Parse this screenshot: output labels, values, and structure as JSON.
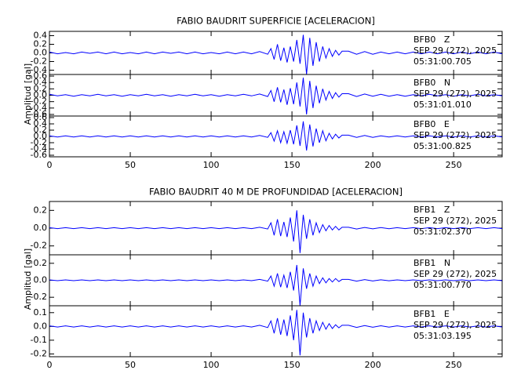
{
  "chart_data": [
    {
      "type": "line",
      "title": "FABIO BAUDRIT SUPERFICIE [ACELERACION]",
      "ylabel": "Amplitud [gal]",
      "xlim": [
        0,
        280
      ],
      "xticks": [
        0,
        50,
        100,
        150,
        200,
        250
      ],
      "x": [
        0,
        5,
        10,
        15,
        20,
        25,
        30,
        35,
        40,
        45,
        50,
        55,
        60,
        65,
        70,
        75,
        80,
        85,
        90,
        95,
        100,
        105,
        110,
        115,
        120,
        125,
        130,
        135,
        137,
        139,
        141,
        143,
        145,
        147,
        149,
        151,
        153,
        155,
        157,
        159,
        161,
        163,
        165,
        167,
        169,
        171,
        173,
        175,
        177,
        179,
        181,
        185,
        190,
        195,
        200,
        205,
        210,
        215,
        220,
        225,
        230,
        235,
        240,
        245,
        250,
        255,
        260,
        265,
        270,
        275,
        280
      ],
      "series": [
        {
          "name": "BFB0   Z",
          "date": "SEP 29 (272), 2025",
          "time": "05:31:00.705",
          "color": "#0000ff",
          "ylim": [
            -0.5,
            0.5
          ],
          "yticks": [
            -0.4,
            -0.2,
            {
              "value": 0,
              "label": "0.0"
            },
            0.2,
            0.4
          ],
          "values": [
            0.02,
            -0.02,
            0.01,
            -0.02,
            0.02,
            -0.01,
            0.02,
            -0.02,
            0.02,
            -0.02,
            0.01,
            -0.02,
            0.02,
            -0.02,
            0.02,
            -0.01,
            0.02,
            -0.02,
            0.02,
            -0.02,
            0.01,
            -0.02,
            0.02,
            -0.02,
            0.02,
            -0.02,
            0.03,
            -0.03,
            0.1,
            -0.15,
            0.2,
            -0.18,
            0.12,
            -0.22,
            0.15,
            -0.2,
            0.3,
            -0.25,
            0.42,
            -0.5,
            0.35,
            -0.3,
            0.25,
            -0.2,
            0.15,
            -0.12,
            0.1,
            -0.08,
            0.06,
            -0.05,
            0.04,
            0.04,
            -0.03,
            0.03,
            -0.03,
            0.02,
            -0.02,
            0.02,
            -0.02,
            0.02,
            -0.02,
            0.02,
            -0.02,
            0.02,
            -0.02,
            0.02,
            -0.02,
            0.02,
            -0.02,
            0.02,
            -0.02
          ]
        },
        {
          "name": "BFB0   N",
          "date": "SEP 29 (272), 2025",
          "time": "05:31:01.010",
          "color": "#0000ff",
          "ylim": [
            -0.65,
            0.65
          ],
          "yticks": [
            -0.6,
            -0.4,
            -0.2,
            {
              "value": 0,
              "label": "0.0"
            },
            0.2,
            0.4,
            0.6
          ],
          "values": [
            0.03,
            -0.02,
            0.02,
            -0.03,
            0.02,
            -0.02,
            0.03,
            -0.02,
            0.02,
            -0.03,
            0.02,
            -0.02,
            0.03,
            -0.02,
            0.02,
            -0.03,
            0.02,
            -0.02,
            0.03,
            -0.02,
            0.02,
            -0.03,
            0.02,
            -0.02,
            0.03,
            -0.02,
            0.04,
            -0.04,
            0.15,
            -0.2,
            0.25,
            -0.22,
            0.18,
            -0.3,
            0.22,
            -0.28,
            0.4,
            -0.35,
            0.55,
            -0.6,
            0.45,
            -0.4,
            0.3,
            -0.25,
            0.2,
            -0.15,
            0.12,
            -0.1,
            0.08,
            -0.06,
            0.05,
            0.05,
            -0.04,
            0.04,
            -0.03,
            0.03,
            -0.03,
            0.02,
            -0.03,
            0.02,
            -0.02,
            0.03,
            -0.02,
            0.02,
            -0.03,
            0.02,
            -0.02,
            0.03,
            -0.02,
            0.02,
            -0.02
          ]
        },
        {
          "name": "BFB0   E",
          "date": "SEP 29 (272), 2025",
          "time": "05:31:00.825",
          "color": "#0000ff",
          "ylim": [
            -0.65,
            0.65
          ],
          "yticks": [
            -0.6,
            -0.4,
            -0.2,
            {
              "value": 0,
              "label": "0.0"
            },
            0.2,
            0.4,
            0.6
          ],
          "values": [
            0.02,
            -0.02,
            0.02,
            -0.02,
            0.02,
            -0.02,
            0.02,
            -0.02,
            0.02,
            -0.02,
            0.02,
            -0.02,
            0.02,
            -0.02,
            0.02,
            -0.02,
            0.02,
            -0.02,
            0.02,
            -0.02,
            0.02,
            -0.02,
            0.02,
            -0.02,
            0.02,
            -0.02,
            0.03,
            -0.03,
            0.12,
            -0.15,
            0.18,
            -0.2,
            0.15,
            -0.22,
            0.2,
            -0.25,
            0.35,
            -0.3,
            0.48,
            -0.45,
            0.38,
            -0.32,
            0.25,
            -0.2,
            0.18,
            -0.14,
            0.1,
            -0.08,
            0.07,
            -0.05,
            0.04,
            0.04,
            -0.03,
            0.03,
            -0.03,
            0.02,
            -0.02,
            0.02,
            -0.02,
            0.02,
            -0.02,
            0.02,
            -0.02,
            0.02,
            -0.02,
            0.02,
            -0.02,
            0.02,
            -0.02,
            0.02,
            -0.02
          ]
        }
      ]
    },
    {
      "type": "line",
      "title": "FABIO BAUDRIT 40 M DE PROFUNDIDAD [ACELERACION]",
      "ylabel": "Amplitud [gal]",
      "xlim": [
        0,
        280
      ],
      "xticks": [
        0,
        50,
        100,
        150,
        200,
        250
      ],
      "x": [
        0,
        5,
        10,
        15,
        20,
        25,
        30,
        35,
        40,
        45,
        50,
        55,
        60,
        65,
        70,
        75,
        80,
        85,
        90,
        95,
        100,
        105,
        110,
        115,
        120,
        125,
        130,
        135,
        137,
        139,
        141,
        143,
        145,
        147,
        149,
        151,
        153,
        155,
        157,
        159,
        161,
        163,
        165,
        167,
        169,
        171,
        173,
        175,
        177,
        179,
        181,
        185,
        190,
        195,
        200,
        205,
        210,
        215,
        220,
        225,
        230,
        235,
        240,
        245,
        250,
        255,
        260,
        265,
        270,
        275,
        280
      ],
      "series": [
        {
          "name": "BFB1   Z",
          "date": "SEP 29 (272), 2025",
          "time": "05:31:02.370",
          "color": "#0000ff",
          "ylim": [
            -0.3,
            0.3
          ],
          "yticks": [
            -0.2,
            {
              "value": 0,
              "label": "0.0"
            },
            0.2
          ],
          "values": [
            0.005,
            -0.005,
            0.005,
            -0.005,
            0.005,
            -0.005,
            0.005,
            -0.005,
            0.005,
            -0.005,
            0.005,
            -0.005,
            0.005,
            -0.005,
            0.005,
            -0.005,
            0.005,
            -0.005,
            0.005,
            -0.005,
            0.005,
            -0.005,
            0.005,
            -0.005,
            0.005,
            -0.005,
            0.01,
            -0.01,
            0.06,
            -0.08,
            0.1,
            -0.09,
            0.07,
            -0.1,
            0.12,
            -0.15,
            0.2,
            -0.28,
            0.15,
            -0.12,
            0.1,
            -0.08,
            0.06,
            -0.05,
            0.04,
            -0.03,
            0.03,
            -0.02,
            0.02,
            -0.02,
            0.01,
            0.01,
            -0.01,
            0.008,
            -0.008,
            0.006,
            -0.006,
            0.005,
            -0.005,
            0.005,
            -0.005,
            0.005,
            -0.005,
            0.005,
            -0.005,
            0.005,
            -0.005,
            0.005,
            -0.005,
            0.005,
            -0.005
          ]
        },
        {
          "name": "BFB1   N",
          "date": "SEP 29 (272), 2025",
          "time": "05:31:00.770",
          "color": "#0000ff",
          "ylim": [
            -0.3,
            0.3
          ],
          "yticks": [
            -0.2,
            {
              "value": 0,
              "label": "0.0"
            },
            0.2
          ],
          "values": [
            0.005,
            -0.005,
            0.005,
            -0.005,
            0.005,
            -0.005,
            0.005,
            -0.005,
            0.005,
            -0.005,
            0.005,
            -0.005,
            0.005,
            -0.005,
            0.005,
            -0.005,
            0.005,
            -0.005,
            0.005,
            -0.005,
            0.005,
            -0.005,
            0.005,
            -0.005,
            0.005,
            -0.005,
            0.01,
            -0.01,
            0.05,
            -0.07,
            0.08,
            -0.08,
            0.06,
            -0.09,
            0.1,
            -0.12,
            0.18,
            -0.3,
            0.14,
            -0.1,
            0.08,
            -0.07,
            0.05,
            -0.04,
            0.03,
            -0.03,
            0.02,
            -0.02,
            0.02,
            -0.015,
            0.01,
            0.01,
            -0.01,
            0.008,
            -0.008,
            0.006,
            -0.006,
            0.005,
            -0.005,
            0.005,
            -0.005,
            0.005,
            -0.005,
            0.005,
            -0.005,
            0.005,
            -0.005,
            0.005,
            -0.005,
            0.005,
            -0.005
          ]
        },
        {
          "name": "BFB1   E",
          "date": "SEP 29 (272), 2025",
          "time": "05:31:03.195",
          "color": "#0000ff",
          "ylim": [
            -0.22,
            0.15
          ],
          "yticks": [
            -0.2,
            -0.1,
            {
              "value": 0,
              "label": "0.0"
            },
            0.1
          ],
          "values": [
            0.004,
            -0.004,
            0.004,
            -0.004,
            0.004,
            -0.004,
            0.004,
            -0.004,
            0.004,
            -0.004,
            0.004,
            -0.004,
            0.004,
            -0.004,
            0.004,
            -0.004,
            0.004,
            -0.004,
            0.004,
            -0.004,
            0.004,
            -0.004,
            0.004,
            -0.004,
            0.004,
            -0.004,
            0.008,
            -0.008,
            0.04,
            -0.05,
            0.06,
            -0.06,
            0.05,
            -0.07,
            0.08,
            -0.1,
            0.12,
            -0.21,
            0.1,
            -0.08,
            0.06,
            -0.05,
            0.04,
            -0.03,
            0.03,
            -0.02,
            0.02,
            -0.015,
            0.012,
            -0.01,
            0.008,
            0.008,
            -0.007,
            0.006,
            -0.006,
            0.005,
            -0.005,
            0.004,
            -0.004,
            0.004,
            -0.004,
            0.004,
            -0.004,
            0.004,
            -0.004,
            0.004,
            -0.004,
            0.004,
            -0.004,
            0.004,
            -0.004
          ]
        }
      ]
    }
  ]
}
